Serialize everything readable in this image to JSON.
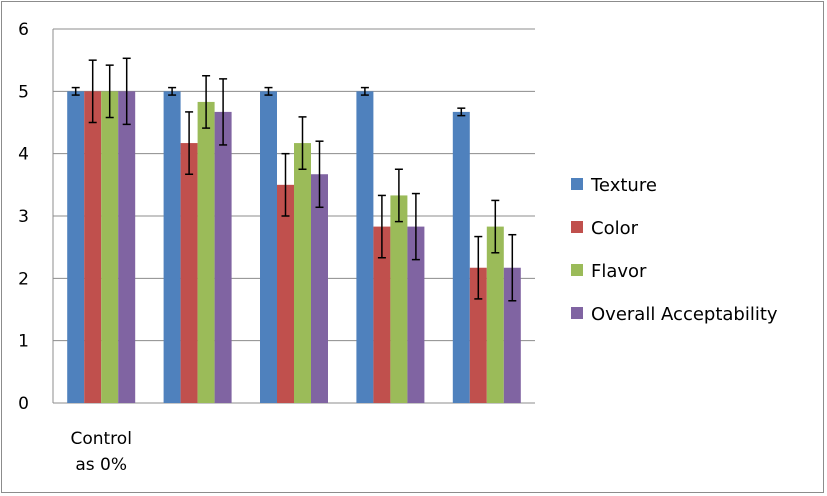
{
  "chart_data": {
    "type": "bar",
    "categories": [
      "Control\nas 0%",
      "",
      "",
      "",
      ""
    ],
    "series": [
      {
        "name": "Texture",
        "color": "#4f81bd",
        "values": [
          5.0,
          5.0,
          5.0,
          5.0,
          4.67
        ],
        "errors": [
          0.06,
          0.06,
          0.06,
          0.06,
          0.06
        ]
      },
      {
        "name": "Color",
        "color": "#c0504d",
        "values": [
          5.0,
          4.17,
          3.5,
          2.83,
          2.17
        ],
        "errors": [
          0.5,
          0.5,
          0.5,
          0.5,
          0.5
        ]
      },
      {
        "name": "Flavor",
        "color": "#9bbb59",
        "values": [
          5.0,
          4.83,
          4.17,
          3.33,
          2.83
        ],
        "errors": [
          0.42,
          0.42,
          0.42,
          0.42,
          0.42
        ]
      },
      {
        "name": "Overall Acceptability",
        "color": "#8064a2",
        "values": [
          5.0,
          4.67,
          3.67,
          2.83,
          2.17
        ],
        "errors": [
          0.53,
          0.53,
          0.53,
          0.53,
          0.53
        ]
      }
    ],
    "title": "",
    "xlabel": "",
    "ylabel": "",
    "ylim": [
      0,
      6
    ],
    "yticks": [
      "0",
      "1",
      "2",
      "3",
      "4",
      "5",
      "6"
    ],
    "grid": true,
    "legend_position": "right"
  }
}
